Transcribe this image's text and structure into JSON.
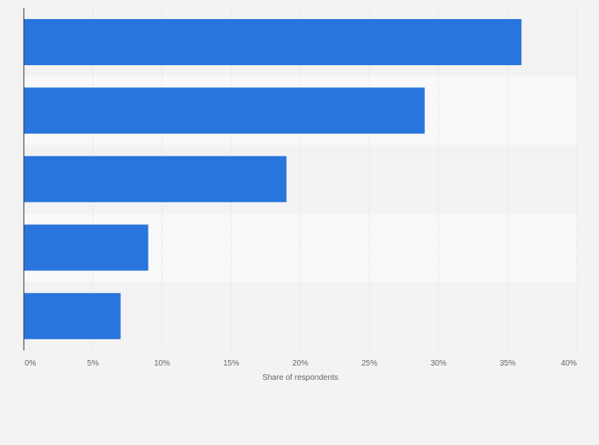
{
  "chart_data": {
    "type": "bar",
    "orientation": "horizontal",
    "categories": [
      "",
      "",
      "",
      "",
      ""
    ],
    "values": [
      36,
      29,
      19,
      9,
      7
    ],
    "xlabel": "Share of respondents",
    "ylabel": "",
    "xlim": [
      0,
      40
    ],
    "x_ticks": [
      0,
      5,
      10,
      15,
      20,
      25,
      30,
      35,
      40
    ],
    "x_tick_labels": [
      "0%",
      "5%",
      "10%",
      "15%",
      "20%",
      "25%",
      "30%",
      "35%",
      "40%"
    ],
    "grid": true,
    "legend": "none",
    "colors": {
      "bar": "#2876dd",
      "band_dark": "#f3f3f3",
      "band_light": "#f9f9f9",
      "grid": "#e0e0e0",
      "axis": "#333333",
      "text": "#666666"
    }
  }
}
